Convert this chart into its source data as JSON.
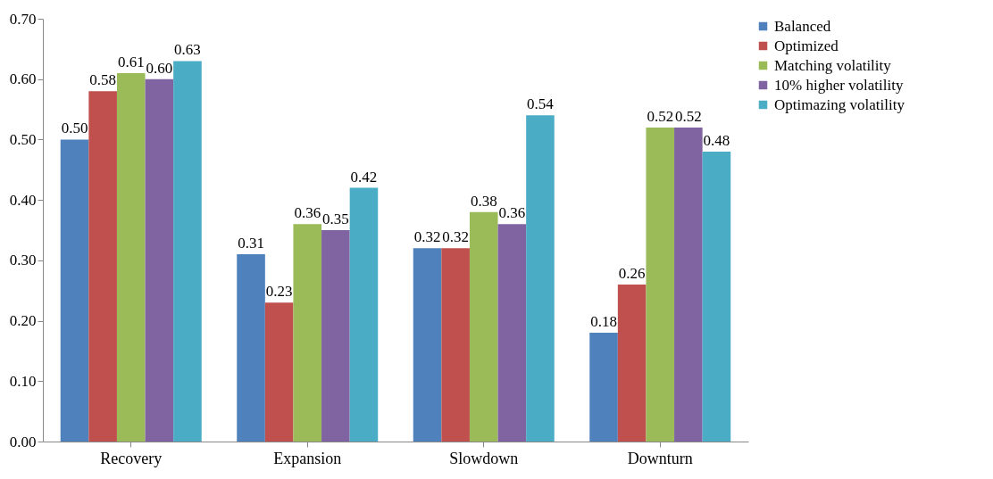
{
  "chart_data": {
    "type": "bar",
    "categories": [
      "Recovery",
      "Expansion",
      "Slowdown",
      "Downturn"
    ],
    "series": [
      {
        "name": "Balanced",
        "color": "#4f81bd",
        "values": [
          0.5,
          0.31,
          0.32,
          0.18
        ],
        "value_labels": [
          "0.50",
          "0.31",
          "0.32",
          "0.18"
        ]
      },
      {
        "name": "Optimized",
        "color": "#c0504d",
        "values": [
          0.58,
          0.23,
          0.32,
          0.26
        ],
        "value_labels": [
          "0.58",
          "0.23",
          "0.32",
          "0.26"
        ]
      },
      {
        "name": "Matching volatility",
        "color": "#9bbb59",
        "values": [
          0.61,
          0.36,
          0.38,
          0.52
        ],
        "value_labels": [
          "0.61",
          "0.36",
          "0.38",
          "0.52"
        ]
      },
      {
        "name": "10% higher volatility",
        "color": "#8064a2",
        "values": [
          0.6,
          0.35,
          0.36,
          0.52
        ],
        "value_labels": [
          "0.60",
          "0.35",
          "0.36",
          "0.52"
        ]
      },
      {
        "name": "Optimazing volatility",
        "color": "#4bacc6",
        "values": [
          0.63,
          0.42,
          0.54,
          0.48
        ],
        "value_labels": [
          "0.63",
          "0.42",
          "0.54",
          "0.48"
        ]
      }
    ],
    "ylim": [
      0,
      0.7
    ],
    "yticks": [
      {
        "value": 0,
        "label": "0.00"
      },
      {
        "value": 0.1,
        "label": "0.10"
      },
      {
        "value": 0.2,
        "label": "0.20"
      },
      {
        "value": 0.3,
        "label": "0.30"
      },
      {
        "value": 0.4,
        "label": "0.40"
      },
      {
        "value": 0.5,
        "label": "0.50"
      },
      {
        "value": 0.6,
        "label": "0.60"
      },
      {
        "value": 0.7,
        "label": "0.70"
      }
    ],
    "grid": false,
    "legend": "right"
  }
}
